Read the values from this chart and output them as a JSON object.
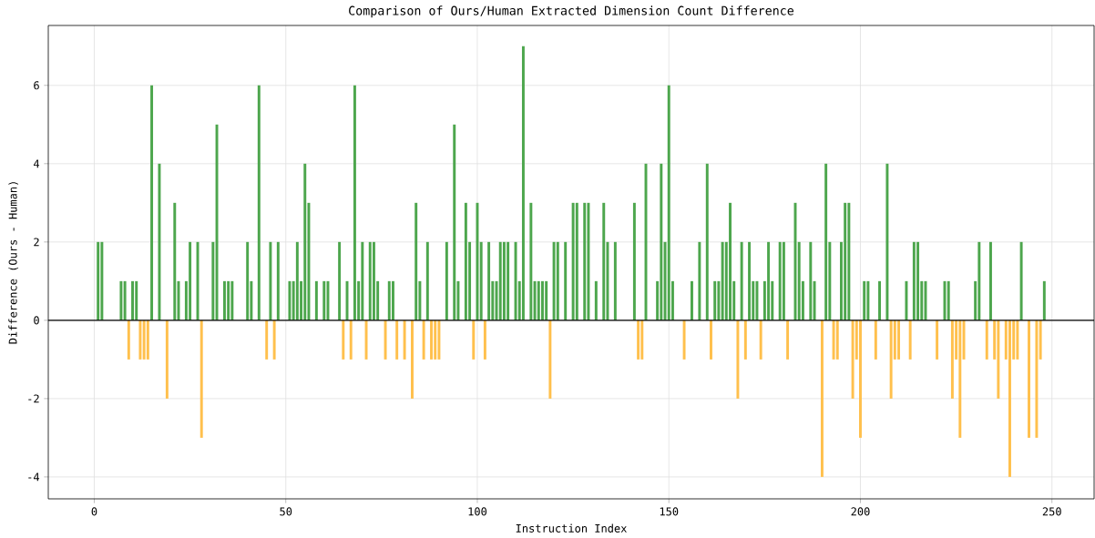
{
  "chart_data": {
    "type": "bar",
    "title": "Comparison of Ours/Human Extracted Dimension Count Difference",
    "xlabel": "Instruction Index",
    "ylabel": "Difference (Ours - Human)",
    "x": [
      0,
      1,
      2,
      3,
      4,
      5,
      6,
      7,
      8,
      9,
      10,
      11,
      12,
      13,
      14,
      15,
      16,
      17,
      18,
      19,
      20,
      21,
      22,
      23,
      24,
      25,
      26,
      27,
      28,
      29,
      30,
      31,
      32,
      33,
      34,
      35,
      36,
      37,
      38,
      39,
      40,
      41,
      42,
      43,
      44,
      45,
      46,
      47,
      48,
      49,
      50,
      51,
      52,
      53,
      54,
      55,
      56,
      57,
      58,
      59,
      60,
      61,
      62,
      63,
      64,
      65,
      66,
      67,
      68,
      69,
      70,
      71,
      72,
      73,
      74,
      75,
      76,
      77,
      78,
      79,
      80,
      81,
      82,
      83,
      84,
      85,
      86,
      87,
      88,
      89,
      90,
      91,
      92,
      93,
      94,
      95,
      96,
      97,
      98,
      99,
      100,
      101,
      102,
      103,
      104,
      105,
      106,
      107,
      108,
      109,
      110,
      111,
      112,
      113,
      114,
      115,
      116,
      117,
      118,
      119,
      120,
      121,
      122,
      123,
      124,
      125,
      126,
      127,
      128,
      129,
      130,
      131,
      132,
      133,
      134,
      135,
      136,
      137,
      138,
      139,
      140,
      141,
      142,
      143,
      144,
      145,
      146,
      147,
      148,
      149,
      150,
      151,
      152,
      153,
      154,
      155,
      156,
      157,
      158,
      159,
      160,
      161,
      162,
      163,
      164,
      165,
      166,
      167,
      168,
      169,
      170,
      171,
      172,
      173,
      174,
      175,
      176,
      177,
      178,
      179,
      180,
      181,
      182,
      183,
      184,
      185,
      186,
      187,
      188,
      189,
      190,
      191,
      192,
      193,
      194,
      195,
      196,
      197,
      198,
      199,
      200,
      201,
      202,
      203,
      204,
      205,
      206,
      207,
      208,
      209,
      210,
      211,
      212,
      213,
      214,
      215,
      216,
      217,
      218,
      219,
      220,
      221,
      222,
      223,
      224,
      225,
      226,
      227,
      228,
      229,
      230,
      231,
      232,
      233,
      234,
      235,
      236,
      237,
      238,
      239,
      240,
      241,
      242,
      243,
      244,
      245,
      246,
      247,
      248
    ],
    "values": [
      0,
      2,
      2,
      0,
      0,
      0,
      0,
      1,
      1,
      -1,
      1,
      1,
      -1,
      -1,
      -1,
      6,
      0,
      4,
      0,
      -2,
      0,
      3,
      1,
      0,
      1,
      2,
      0,
      2,
      -3,
      0,
      0,
      2,
      5,
      0,
      1,
      1,
      1,
      0,
      0,
      0,
      2,
      1,
      0,
      6,
      0,
      -1,
      2,
      -1,
      2,
      0,
      0,
      1,
      1,
      2,
      1,
      4,
      3,
      0,
      1,
      0,
      1,
      1,
      0,
      0,
      2,
      -1,
      1,
      -1,
      6,
      1,
      2,
      -1,
      2,
      2,
      1,
      0,
      -1,
      1,
      1,
      -1,
      0,
      -1,
      0,
      -2,
      3,
      1,
      -1,
      2,
      -1,
      -1,
      -1,
      0,
      2,
      0,
      5,
      1,
      0,
      3,
      2,
      -1,
      3,
      2,
      -1,
      2,
      1,
      1,
      2,
      2,
      2,
      0,
      2,
      1,
      7,
      0,
      3,
      1,
      1,
      1,
      1,
      -2,
      2,
      2,
      0,
      2,
      0,
      3,
      3,
      0,
      3,
      3,
      0,
      1,
      0,
      3,
      2,
      0,
      2,
      0,
      0,
      0,
      0,
      3,
      -1,
      -1,
      4,
      0,
      0,
      1,
      4,
      2,
      6,
      1,
      0,
      0,
      -1,
      0,
      1,
      0,
      2,
      0,
      4,
      -1,
      1,
      1,
      2,
      2,
      3,
      1,
      -2,
      2,
      -1,
      2,
      1,
      1,
      -1,
      1,
      2,
      1,
      0,
      2,
      2,
      -1,
      0,
      3,
      2,
      1,
      0,
      2,
      1,
      0,
      -4,
      4,
      2,
      -1,
      -1,
      2,
      3,
      3,
      -2,
      -1,
      -3,
      1,
      1,
      0,
      -1,
      1,
      0,
      4,
      -2,
      -1,
      -1,
      0,
      1,
      -1,
      2,
      2,
      1,
      1,
      0,
      0,
      -1,
      0,
      1,
      1,
      -2,
      -1,
      -3,
      -1,
      0,
      0,
      1,
      2,
      0,
      -1,
      2,
      -1,
      -2,
      0,
      -1,
      -4,
      -1,
      -1,
      2,
      0,
      -3,
      0,
      -3,
      -1,
      1
    ],
    "colors": [
      "#ffc04d",
      "#4da64d",
      "#4da64d",
      "#ffc04d",
      "#ffc04d",
      "#ffc04d",
      "#ffc04d",
      "#4da64d",
      "#4da64d",
      "#ffc04d",
      "#4da64d",
      "#4da64d",
      "#ffc04d",
      "#ffc04d",
      "#ffc04d",
      "#4da64d",
      "#ffc04d",
      "#4da64d",
      "#ffc04d",
      "#ffc04d",
      "#ffc04d",
      "#4da64d",
      "#4da64d",
      "#ffc04d",
      "#4da64d",
      "#4da64d",
      "#ffc04d",
      "#4da64d",
      "#ffc04d",
      "#ffc04d",
      "#ffc04d",
      "#4da64d",
      "#4da64d",
      "#ffc04d",
      "#4da64d",
      "#4da64d",
      "#4da64d",
      "#ffc04d",
      "#ffc04d",
      "#ffc04d",
      "#4da64d",
      "#4da64d",
      "#ffc04d",
      "#4da64d",
      "#ffc04d",
      "#ffc04d",
      "#4da64d",
      "#ffc04d",
      "#4da64d",
      "#ffc04d",
      "#ffc04d",
      "#4da64d",
      "#4da64d",
      "#4da64d",
      "#4da64d",
      "#4da64d",
      "#4da64d",
      "#ffc04d",
      "#4da64d",
      "#ffc04d",
      "#4da64d",
      "#4da64d",
      "#ffc04d",
      "#ffc04d",
      "#4da64d",
      "#ffc04d",
      "#4da64d",
      "#ffc04d",
      "#4da64d",
      "#4da64d",
      "#4da64d",
      "#ffc04d",
      "#4da64d",
      "#4da64d",
      "#4da64d",
      "#ffc04d",
      "#ffc04d",
      "#4da64d",
      "#4da64d",
      "#ffc04d",
      "#ffc04d",
      "#ffc04d",
      "#ffc04d",
      "#ffc04d",
      "#4da64d",
      "#4da64d",
      "#ffc04d",
      "#4da64d",
      "#ffc04d",
      "#ffc04d",
      "#ffc04d",
      "#ffc04d",
      "#4da64d",
      "#ffc04d",
      "#4da64d",
      "#4da64d",
      "#ffc04d",
      "#4da64d",
      "#4da64d",
      "#ffc04d",
      "#4da64d",
      "#4da64d",
      "#ffc04d",
      "#4da64d",
      "#4da64d",
      "#4da64d",
      "#4da64d",
      "#4da64d",
      "#4da64d",
      "#ffc04d",
      "#4da64d",
      "#4da64d",
      "#4da64d",
      "#ffc04d",
      "#4da64d",
      "#4da64d",
      "#4da64d",
      "#4da64d",
      "#4da64d",
      "#ffc04d",
      "#4da64d",
      "#4da64d",
      "#ffc04d",
      "#4da64d",
      "#ffc04d",
      "#4da64d",
      "#4da64d",
      "#ffc04d",
      "#4da64d",
      "#4da64d",
      "#ffc04d",
      "#4da64d",
      "#ffc04d",
      "#4da64d",
      "#4da64d",
      "#ffc04d",
      "#4da64d",
      "#ffc04d",
      "#ffc04d",
      "#ffc04d",
      "#ffc04d",
      "#4da64d",
      "#ffc04d",
      "#ffc04d",
      "#4da64d",
      "#ffc04d",
      "#ffc04d",
      "#4da64d",
      "#4da64d",
      "#4da64d",
      "#4da64d",
      "#4da64d",
      "#ffc04d",
      "#ffc04d",
      "#ffc04d",
      "#ffc04d",
      "#4da64d",
      "#ffc04d",
      "#4da64d",
      "#ffc04d",
      "#4da64d",
      "#ffc04d",
      "#4da64d",
      "#4da64d",
      "#4da64d",
      "#4da64d",
      "#4da64d",
      "#4da64d",
      "#ffc04d",
      "#4da64d",
      "#ffc04d",
      "#4da64d",
      "#4da64d",
      "#4da64d",
      "#ffc04d",
      "#4da64d",
      "#4da64d",
      "#4da64d",
      "#ffc04d",
      "#4da64d",
      "#4da64d",
      "#ffc04d",
      "#ffc04d",
      "#4da64d",
      "#4da64d",
      "#4da64d",
      "#ffc04d",
      "#4da64d",
      "#4da64d",
      "#ffc04d",
      "#ffc04d",
      "#4da64d",
      "#4da64d",
      "#ffc04d",
      "#ffc04d",
      "#4da64d",
      "#4da64d",
      "#4da64d",
      "#ffc04d",
      "#ffc04d",
      "#ffc04d",
      "#4da64d",
      "#4da64d",
      "#ffc04d",
      "#ffc04d",
      "#4da64d",
      "#ffc04d",
      "#4da64d",
      "#ffc04d",
      "#ffc04d",
      "#ffc04d",
      "#ffc04d",
      "#4da64d",
      "#ffc04d",
      "#4da64d",
      "#4da64d",
      "#4da64d",
      "#4da64d",
      "#ffc04d",
      "#ffc04d",
      "#ffc04d",
      "#ffc04d",
      "#4da64d",
      "#4da64d",
      "#ffc04d",
      "#ffc04d",
      "#ffc04d",
      "#ffc04d",
      "#ffc04d",
      "#ffc04d",
      "#4da64d",
      "#4da64d",
      "#ffc04d",
      "#ffc04d",
      "#4da64d",
      "#ffc04d",
      "#ffc04d",
      "#ffc04d",
      "#ffc04d",
      "#ffc04d",
      "#ffc04d",
      "#ffc04d",
      "#4da64d",
      "#ffc04d",
      "#ffc04d",
      "#ffc04d",
      "#ffc04d",
      "#ffc04d",
      "#4da64d"
    ],
    "xlim": [
      -12,
      261
    ],
    "ylim": [
      -4.56,
      7.53
    ],
    "xticks": [
      0,
      50,
      100,
      150,
      200,
      250
    ],
    "yticks": [
      -4,
      -2,
      0,
      2,
      4,
      6
    ],
    "grid": true,
    "ref_lines": [
      {
        "axis": "y",
        "value": 0,
        "color": "#000000"
      }
    ]
  }
}
